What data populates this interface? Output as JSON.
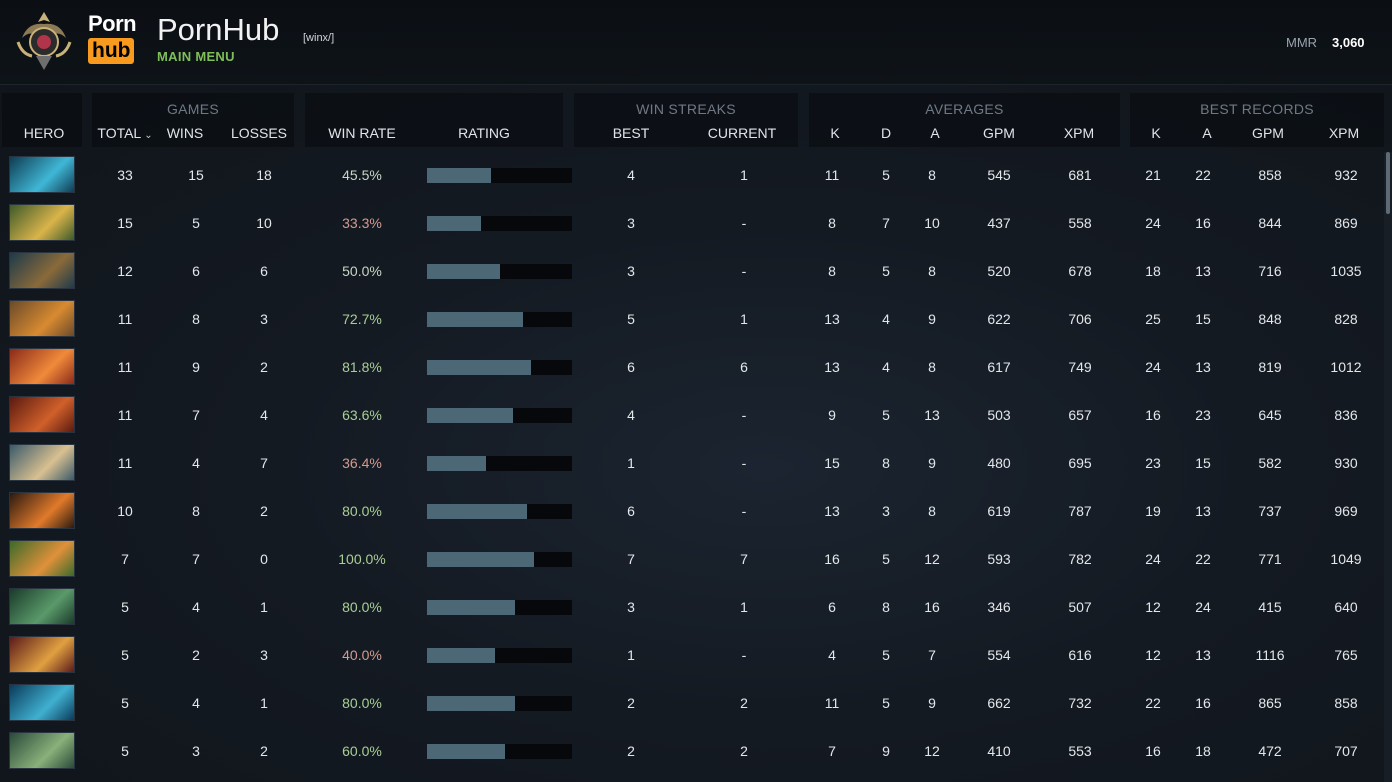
{
  "header": {
    "logo_top": "Porn",
    "logo_bottom": "hub",
    "team_name": "PornHub",
    "team_tag": "[winx/]",
    "subtitle": "MAIN MENU",
    "mmr_label": "MMR",
    "mmr_value": "3,060"
  },
  "table": {
    "groups": {
      "games": "GAMES",
      "win_streaks": "WIN STREAKS",
      "averages": "AVERAGES",
      "best_records": "BEST RECORDS"
    },
    "columns": {
      "hero": "HERO",
      "total": "TOTAL",
      "wins": "WINS",
      "losses": "LOSSES",
      "win_rate": "WIN RATE",
      "rating": "RATING",
      "best": "BEST",
      "current": "CURRENT",
      "avg_k": "K",
      "avg_d": "D",
      "avg_a": "A",
      "avg_gpm": "GPM",
      "avg_xpm": "XPM",
      "rec_k": "K",
      "rec_a": "A",
      "rec_gpm": "GPM",
      "rec_xpm": "XPM"
    },
    "rows": [
      {
        "hero_icon": "hero-portrait-icon",
        "colors": [
          "#0f3c52",
          "#3fb7d6"
        ],
        "total": "33",
        "wins": "15",
        "losses": "18",
        "win_rate": "45.5%",
        "rating": 0.44,
        "best": "4",
        "current": "1",
        "k": "11",
        "d": "5",
        "a": "8",
        "gpm": "545",
        "xpm": "681",
        "rk": "21",
        "ra": "22",
        "rgpm": "858",
        "rxpm": "932"
      },
      {
        "hero_icon": "hero-portrait-icon",
        "colors": [
          "#3d5a2a",
          "#d9b44a"
        ],
        "total": "15",
        "wins": "5",
        "losses": "10",
        "win_rate": "33.3%",
        "rating": 0.37,
        "best": "3",
        "current": "-",
        "k": "8",
        "d": "7",
        "a": "10",
        "gpm": "437",
        "xpm": "558",
        "rk": "24",
        "ra": "16",
        "rgpm": "844",
        "rxpm": "869"
      },
      {
        "hero_icon": "hero-portrait-icon",
        "colors": [
          "#1d3a4a",
          "#8a6a3a"
        ],
        "total": "12",
        "wins": "6",
        "losses": "6",
        "win_rate": "50.0%",
        "rating": 0.5,
        "best": "3",
        "current": "-",
        "k": "8",
        "d": "5",
        "a": "8",
        "gpm": "520",
        "xpm": "678",
        "rk": "18",
        "ra": "13",
        "rgpm": "716",
        "rxpm": "1035"
      },
      {
        "hero_icon": "hero-portrait-icon",
        "colors": [
          "#6a4a2a",
          "#d88a30"
        ],
        "total": "11",
        "wins": "8",
        "losses": "3",
        "win_rate": "72.7%",
        "rating": 0.66,
        "best": "5",
        "current": "1",
        "k": "13",
        "d": "4",
        "a": "9",
        "gpm": "622",
        "xpm": "706",
        "rk": "25",
        "ra": "15",
        "rgpm": "848",
        "rxpm": "828"
      },
      {
        "hero_icon": "hero-portrait-icon",
        "colors": [
          "#8a2a1a",
          "#f08a3a"
        ],
        "total": "11",
        "wins": "9",
        "losses": "2",
        "win_rate": "81.8%",
        "rating": 0.72,
        "best": "6",
        "current": "6",
        "k": "13",
        "d": "4",
        "a": "8",
        "gpm": "617",
        "xpm": "749",
        "rk": "24",
        "ra": "13",
        "rgpm": "819",
        "rxpm": "1012"
      },
      {
        "hero_icon": "hero-portrait-icon",
        "colors": [
          "#5a1a10",
          "#d0602a"
        ],
        "total": "11",
        "wins": "7",
        "losses": "4",
        "win_rate": "63.6%",
        "rating": 0.59,
        "best": "4",
        "current": "-",
        "k": "9",
        "d": "5",
        "a": "13",
        "gpm": "503",
        "xpm": "657",
        "rk": "16",
        "ra": "23",
        "rgpm": "645",
        "rxpm": "836"
      },
      {
        "hero_icon": "hero-portrait-icon",
        "colors": [
          "#3a5a6a",
          "#d8c090"
        ],
        "total": "11",
        "wins": "4",
        "losses": "7",
        "win_rate": "36.4%",
        "rating": 0.41,
        "best": "1",
        "current": "-",
        "k": "15",
        "d": "8",
        "a": "9",
        "gpm": "480",
        "xpm": "695",
        "rk": "23",
        "ra": "15",
        "rgpm": "582",
        "rxpm": "930"
      },
      {
        "hero_icon": "hero-portrait-icon",
        "colors": [
          "#2a1a10",
          "#e07a2a"
        ],
        "total": "10",
        "wins": "8",
        "losses": "2",
        "win_rate": "80.0%",
        "rating": 0.69,
        "best": "6",
        "current": "-",
        "k": "13",
        "d": "3",
        "a": "8",
        "gpm": "619",
        "xpm": "787",
        "rk": "19",
        "ra": "13",
        "rgpm": "737",
        "rxpm": "969"
      },
      {
        "hero_icon": "hero-portrait-icon",
        "colors": [
          "#3a6a2a",
          "#e0903a"
        ],
        "total": "7",
        "wins": "7",
        "losses": "0",
        "win_rate": "100.0%",
        "rating": 0.74,
        "best": "7",
        "current": "7",
        "k": "16",
        "d": "5",
        "a": "12",
        "gpm": "593",
        "xpm": "782",
        "rk": "24",
        "ra": "22",
        "rgpm": "771",
        "rxpm": "1049"
      },
      {
        "hero_icon": "hero-portrait-icon",
        "colors": [
          "#1a3a2a",
          "#5a9a6a"
        ],
        "total": "5",
        "wins": "4",
        "losses": "1",
        "win_rate": "80.0%",
        "rating": 0.61,
        "best": "3",
        "current": "1",
        "k": "6",
        "d": "8",
        "a": "16",
        "gpm": "346",
        "xpm": "507",
        "rk": "12",
        "ra": "24",
        "rgpm": "415",
        "rxpm": "640"
      },
      {
        "hero_icon": "hero-portrait-icon",
        "colors": [
          "#5a1a1a",
          "#e0a040"
        ],
        "total": "5",
        "wins": "2",
        "losses": "3",
        "win_rate": "40.0%",
        "rating": 0.47,
        "best": "1",
        "current": "-",
        "k": "4",
        "d": "5",
        "a": "7",
        "gpm": "554",
        "xpm": "616",
        "rk": "12",
        "ra": "13",
        "rgpm": "1116",
        "rxpm": "765"
      },
      {
        "hero_icon": "hero-portrait-icon",
        "colors": [
          "#0a3a5a",
          "#40b0d0"
        ],
        "total": "5",
        "wins": "4",
        "losses": "1",
        "win_rate": "80.0%",
        "rating": 0.61,
        "best": "2",
        "current": "2",
        "k": "11",
        "d": "5",
        "a": "9",
        "gpm": "662",
        "xpm": "732",
        "rk": "22",
        "ra": "16",
        "rgpm": "865",
        "rxpm": "858"
      },
      {
        "hero_icon": "hero-portrait-icon",
        "colors": [
          "#2a4a3a",
          "#8ab07a"
        ],
        "total": "5",
        "wins": "3",
        "losses": "2",
        "win_rate": "60.0%",
        "rating": 0.54,
        "best": "2",
        "current": "2",
        "k": "7",
        "d": "9",
        "a": "12",
        "gpm": "410",
        "xpm": "553",
        "rk": "16",
        "ra": "18",
        "rgpm": "472",
        "rxpm": "707"
      }
    ]
  }
}
